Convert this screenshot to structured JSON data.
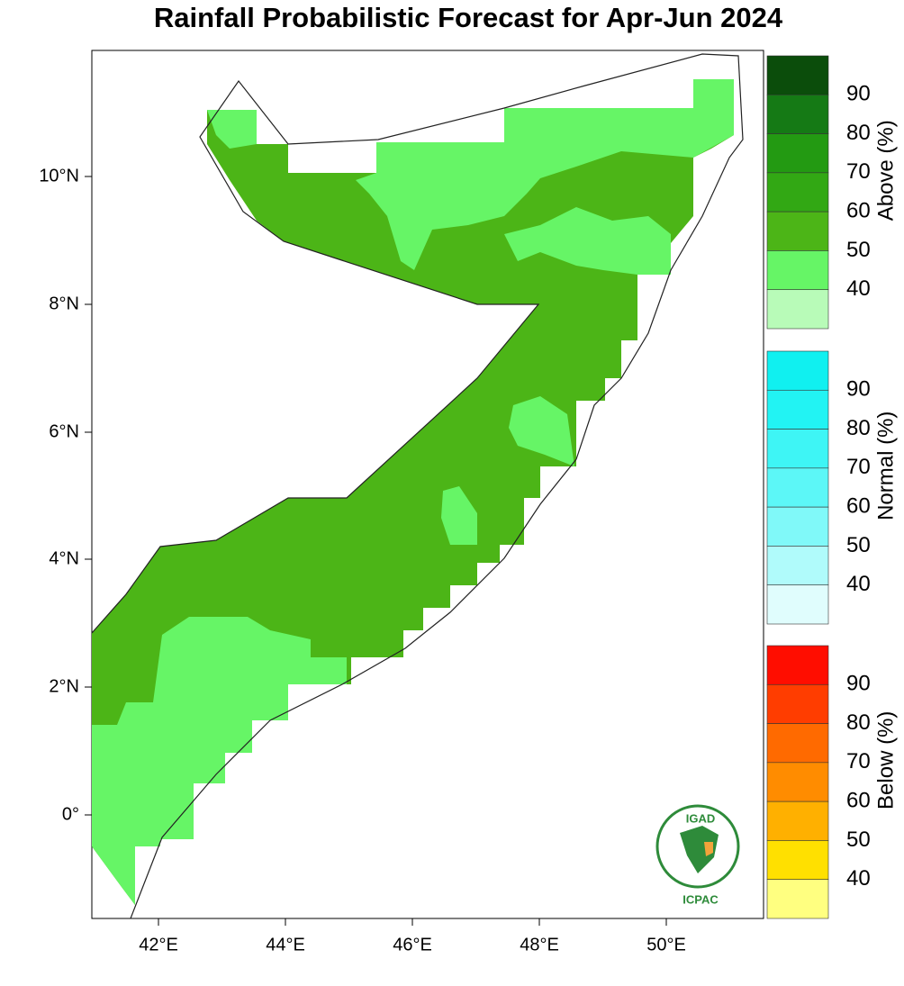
{
  "title": "Rainfall Probabilistic Forecast for Apr-Jun  2024",
  "lat_labels": [
    "10°N",
    "8°N",
    "6°N",
    "4°N",
    "2°N",
    "0°"
  ],
  "lon_labels": [
    "42°E",
    "44°E",
    "46°E",
    "48°E",
    "50°E"
  ],
  "legends": [
    {
      "label": "Above (%)",
      "ticks": [
        "90",
        "80",
        "70",
        "60",
        "50",
        "40"
      ],
      "colors": [
        "#0b4d0b",
        "#157a15",
        "#239a12",
        "#32a814",
        "#4cb517",
        "#66f566",
        "#b8fbb8"
      ]
    },
    {
      "label": "Normal (%)",
      "ticks": [
        "90",
        "80",
        "70",
        "60",
        "50",
        "40"
      ],
      "colors": [
        "#10f0f0",
        "#22f3f3",
        "#3ef5f5",
        "#5cf7f7",
        "#80f9f9",
        "#b0fbfb",
        "#e0fdfd"
      ]
    },
    {
      "label": "Below (%)",
      "ticks": [
        "90",
        "80",
        "70",
        "60",
        "50",
        "40"
      ],
      "colors": [
        "#ff0d00",
        "#ff3d00",
        "#ff6a00",
        "#ff8c00",
        "#ffb000",
        "#ffe000",
        "#ffff80"
      ]
    }
  ],
  "logo": {
    "top": "IGAD",
    "bottom": "ICPAC"
  }
}
